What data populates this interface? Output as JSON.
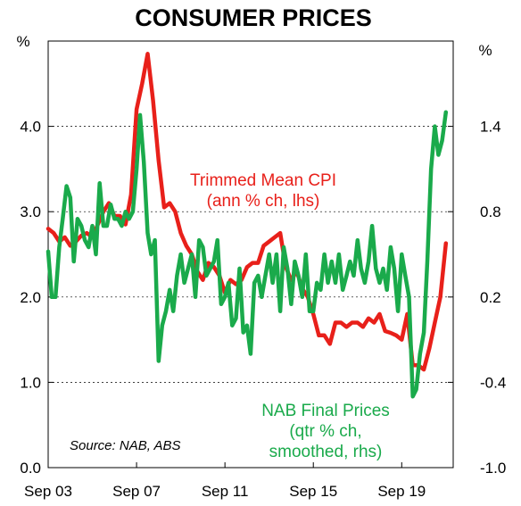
{
  "chart_data": {
    "type": "line",
    "title": "CONSUMER PRICES",
    "left_axis": {
      "unit": "%",
      "ylim": [
        0,
        5
      ],
      "ticks": [
        0,
        1,
        2,
        3,
        4
      ],
      "tick_labels": [
        "0.0",
        "1.0",
        "2.0",
        "3.0",
        "4.0"
      ]
    },
    "right_axis": {
      "unit": "%",
      "ylim": [
        -1.0,
        2.0
      ],
      "ticks": [
        -1.0,
        -0.4,
        0.2,
        0.8,
        1.4
      ],
      "tick_labels": [
        "-1.0",
        "-0.4",
        "0.2",
        "0.8",
        "1.4"
      ]
    },
    "x_axis": {
      "range": [
        2003.67,
        2022.0
      ],
      "ticks": [
        2003.67,
        2007.67,
        2011.67,
        2015.67,
        2019.67
      ],
      "tick_labels": [
        "Sep 03",
        "Sep 07",
        "Sep 11",
        "Sep 15",
        "Sep 19"
      ]
    },
    "grid": "horizontal dashed",
    "series": [
      {
        "name": "Trimmed Mean CPI",
        "annotation_lines": [
          "Trimmed Mean CPI",
          "(ann % ch, lhs)"
        ],
        "axis": "left",
        "color": "#e8201a",
        "x": [
          2003.67,
          2003.92,
          2004.17,
          2004.42,
          2004.67,
          2004.92,
          2005.17,
          2005.42,
          2005.67,
          2005.92,
          2006.17,
          2006.42,
          2006.67,
          2006.92,
          2007.17,
          2007.42,
          2007.67,
          2007.92,
          2008.17,
          2008.42,
          2008.67,
          2008.92,
          2009.17,
          2009.42,
          2009.67,
          2009.92,
          2010.17,
          2010.42,
          2010.67,
          2010.92,
          2011.17,
          2011.42,
          2011.67,
          2011.92,
          2012.17,
          2012.42,
          2012.67,
          2012.92,
          2013.17,
          2013.42,
          2013.67,
          2013.92,
          2014.17,
          2014.42,
          2014.67,
          2014.92,
          2015.17,
          2015.42,
          2015.67,
          2015.92,
          2016.17,
          2016.42,
          2016.67,
          2016.92,
          2017.17,
          2017.42,
          2017.67,
          2017.92,
          2018.17,
          2018.42,
          2018.67,
          2018.92,
          2019.17,
          2019.42,
          2019.67,
          2019.92,
          2020.17,
          2020.42,
          2020.67,
          2020.92,
          2021.17,
          2021.42,
          2021.67
        ],
        "values": [
          2.8,
          2.75,
          2.65,
          2.7,
          2.6,
          2.65,
          2.72,
          2.75,
          2.7,
          2.85,
          3.0,
          3.1,
          2.95,
          2.95,
          2.85,
          3.2,
          4.2,
          4.5,
          4.85,
          4.3,
          3.6,
          3.05,
          3.1,
          3.0,
          2.75,
          2.6,
          2.5,
          2.3,
          2.2,
          2.4,
          2.35,
          2.25,
          2.05,
          2.2,
          2.15,
          2.2,
          2.35,
          2.4,
          2.4,
          2.6,
          2.65,
          2.7,
          2.75,
          2.35,
          2.2,
          2.3,
          2.1,
          2.0,
          1.8,
          1.55,
          1.55,
          1.45,
          1.7,
          1.7,
          1.65,
          1.7,
          1.7,
          1.65,
          1.75,
          1.7,
          1.8,
          1.6,
          1.58,
          1.55,
          1.5,
          1.8,
          1.2,
          1.2,
          1.15,
          1.4,
          1.7,
          2.0,
          2.63
        ]
      },
      {
        "name": "NAB Final Prices",
        "annotation_lines": [
          "NAB Final Prices",
          "(qtr % ch,",
          "smoothed, rhs)"
        ],
        "axis": "right",
        "color": "#1aaa4b",
        "x": [
          2003.67,
          2003.83,
          2004.0,
          2004.17,
          2004.33,
          2004.5,
          2004.67,
          2004.83,
          2005.0,
          2005.17,
          2005.33,
          2005.5,
          2005.67,
          2005.83,
          2006.0,
          2006.17,
          2006.33,
          2006.5,
          2006.67,
          2006.83,
          2007.0,
          2007.17,
          2007.33,
          2007.5,
          2007.67,
          2007.83,
          2008.0,
          2008.17,
          2008.33,
          2008.5,
          2008.67,
          2008.83,
          2009.0,
          2009.17,
          2009.33,
          2009.5,
          2009.67,
          2009.83,
          2010.0,
          2010.17,
          2010.33,
          2010.5,
          2010.67,
          2010.83,
          2011.0,
          2011.17,
          2011.33,
          2011.5,
          2011.67,
          2011.83,
          2012.0,
          2012.17,
          2012.33,
          2012.5,
          2012.67,
          2012.83,
          2013.0,
          2013.17,
          2013.33,
          2013.5,
          2013.67,
          2013.83,
          2014.0,
          2014.17,
          2014.33,
          2014.5,
          2014.67,
          2014.83,
          2015.0,
          2015.17,
          2015.33,
          2015.5,
          2015.67,
          2015.83,
          2016.0,
          2016.17,
          2016.33,
          2016.5,
          2016.67,
          2016.83,
          2017.0,
          2017.17,
          2017.33,
          2017.5,
          2017.67,
          2017.83,
          2018.0,
          2018.17,
          2018.33,
          2018.5,
          2018.67,
          2018.83,
          2019.0,
          2019.17,
          2019.33,
          2019.5,
          2019.67,
          2019.83,
          2020.0,
          2020.17,
          2020.33,
          2020.5,
          2020.67,
          2020.83,
          2021.0,
          2021.17,
          2021.33,
          2021.5,
          2021.67
        ],
        "values": [
          0.52,
          0.2,
          0.2,
          0.55,
          0.75,
          0.98,
          0.9,
          0.45,
          0.75,
          0.7,
          0.6,
          0.55,
          0.7,
          0.5,
          1.0,
          0.7,
          0.7,
          0.85,
          0.75,
          0.75,
          0.7,
          0.8,
          0.75,
          0.8,
          1.1,
          1.48,
          1.15,
          0.65,
          0.5,
          0.6,
          -0.25,
          0.0,
          0.1,
          0.25,
          0.1,
          0.35,
          0.5,
          0.3,
          0.4,
          0.5,
          0.2,
          0.6,
          0.55,
          0.35,
          0.4,
          0.45,
          0.6,
          0.15,
          0.2,
          0.3,
          0.0,
          0.05,
          0.4,
          -0.05,
          0.0,
          -0.2,
          0.3,
          0.35,
          0.2,
          0.35,
          0.5,
          0.3,
          0.5,
          0.1,
          0.55,
          0.4,
          0.15,
          0.45,
          0.35,
          0.2,
          0.5,
          0.1,
          0.1,
          0.3,
          0.25,
          0.5,
          0.3,
          0.45,
          0.3,
          0.5,
          0.25,
          0.35,
          0.45,
          0.35,
          0.6,
          0.4,
          0.3,
          0.45,
          0.7,
          0.4,
          0.3,
          0.4,
          0.25,
          0.55,
          0.4,
          0.1,
          0.5,
          0.35,
          0.2,
          -0.5,
          -0.45,
          -0.2,
          -0.05,
          0.45,
          1.1,
          1.4,
          1.2,
          1.3,
          1.5
        ]
      }
    ],
    "source": "Source: NAB, ABS"
  }
}
